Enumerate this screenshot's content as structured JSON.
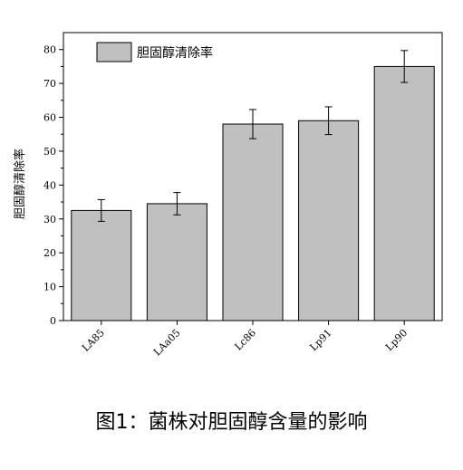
{
  "chart_data": {
    "type": "bar",
    "categories": [
      "LA85",
      "LAa05",
      "Lc86",
      "Lp91",
      "Lp90"
    ],
    "values": [
      32.5,
      34.5,
      58,
      59,
      75
    ],
    "errors": [
      3.2,
      3.3,
      4.3,
      4.1,
      4.7
    ],
    "ylabel": "胆固醇清除率",
    "ylim": [
      0,
      85
    ],
    "yticks": [
      0,
      10,
      20,
      30,
      40,
      50,
      60,
      70,
      80
    ],
    "legend": [
      "胆固醇清除率"
    ],
    "legend_position": "top-left",
    "bar_color": "#c0c0c0",
    "grid": false
  },
  "caption": "图1：菌株对胆固醇含量的影响"
}
